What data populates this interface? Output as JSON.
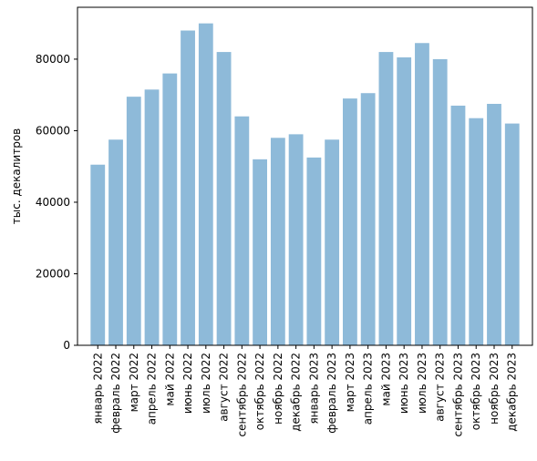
{
  "chart_data": {
    "type": "bar",
    "title": "",
    "xlabel": "",
    "ylabel": "тыс. декалитров",
    "ylim": [
      0,
      94500
    ],
    "yticks": [
      0,
      20000,
      40000,
      60000,
      80000
    ],
    "grid": false,
    "bar_color": "#8ebad9",
    "categories": [
      "январь 2022",
      "февраль 2022",
      "март 2022",
      "апрель 2022",
      "май 2022",
      "июнь 2022",
      "июль 2022",
      "август 2022",
      "сентябрь 2022",
      "октябрь 2022",
      "ноябрь 2022",
      "декабрь 2022",
      "январь 2023",
      "февраль 2023",
      "март 2023",
      "апрель 2023",
      "май 2023",
      "июнь 2023",
      "июль 2023",
      "август 2023",
      "сентябрь 2023",
      "октябрь 2023",
      "ноябрь 2023",
      "декабрь 2023"
    ],
    "values": [
      50500,
      57500,
      69500,
      71500,
      76000,
      88000,
      90000,
      82000,
      64000,
      52000,
      58000,
      59000,
      52500,
      57500,
      69000,
      70500,
      82000,
      80500,
      84500,
      80000,
      67000,
      63500,
      67500,
      62000
    ]
  }
}
